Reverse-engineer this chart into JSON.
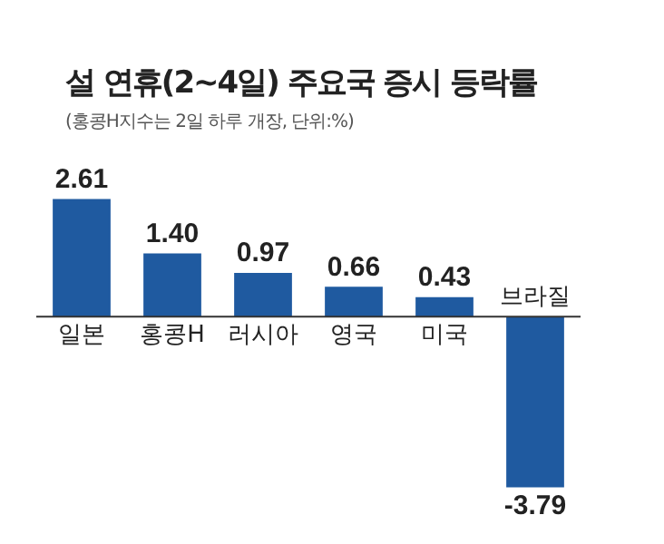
{
  "chart_data": {
    "type": "bar",
    "title": "설 연휴(2~4일) 주요국 증시 등락률",
    "subtitle": "(홍콩H지수는 2일 하루 개장, 단위:%)",
    "categories": [
      "일본",
      "홍콩H",
      "러시아",
      "영국",
      "미국",
      "브라질"
    ],
    "values": [
      2.61,
      1.4,
      0.97,
      0.66,
      0.43,
      -3.79
    ],
    "value_labels": [
      "2.61",
      "1.40",
      "0.97",
      "0.66",
      "0.43",
      "-3.79"
    ],
    "color": "#1f5aa0",
    "legend": false
  }
}
